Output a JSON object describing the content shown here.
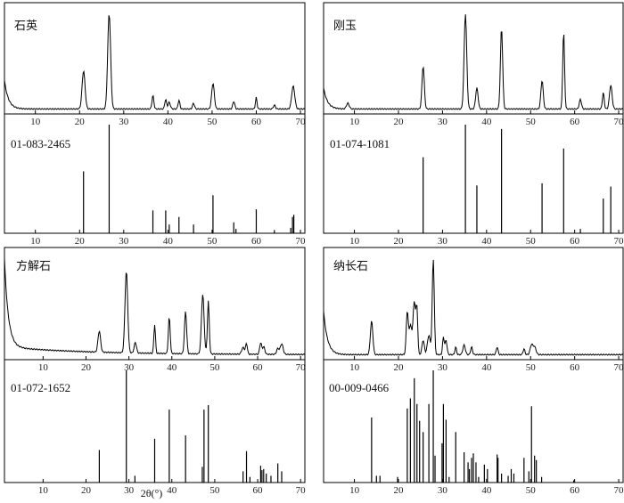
{
  "chart_data": [
    {
      "type": "line",
      "title": "石英",
      "xlim": [
        3,
        71
      ],
      "xticks": [
        10,
        20,
        30,
        40,
        50,
        60,
        70
      ],
      "peaks": [
        [
          20.9,
          0.4
        ],
        [
          26.7,
          1.0
        ],
        [
          36.6,
          0.14
        ],
        [
          39.5,
          0.1
        ],
        [
          40.3,
          0.07
        ],
        [
          42.5,
          0.09
        ],
        [
          45.8,
          0.06
        ],
        [
          50.2,
          0.27
        ],
        [
          54.9,
          0.08
        ],
        [
          60.0,
          0.12
        ],
        [
          64.1,
          0.04
        ],
        [
          68.2,
          0.13
        ],
        [
          68.5,
          0.14
        ]
      ],
      "baseline_start": 0.3
    },
    {
      "type": "bar",
      "title": "01-083-2465",
      "xlim": [
        3,
        71
      ],
      "xticks": [
        10,
        20,
        30,
        40,
        50,
        60,
        70
      ],
      "x": [
        20.9,
        26.7,
        36.6,
        39.5,
        40.3,
        42.5,
        45.8,
        50.2,
        54.9,
        55.4,
        60.0,
        64.1,
        67.8,
        68.2,
        68.5
      ],
      "y": [
        0.57,
        1.0,
        0.21,
        0.21,
        0.08,
        0.15,
        0.08,
        0.35,
        0.1,
        0.04,
        0.22,
        0.03,
        0.05,
        0.15,
        0.17
      ]
    },
    {
      "type": "line",
      "title": "刚玉",
      "xlim": [
        3,
        71
      ],
      "xticks": [
        10,
        20,
        30,
        40,
        50,
        60,
        70
      ],
      "peaks": [
        [
          8.5,
          0.06
        ],
        [
          25.6,
          0.45
        ],
        [
          35.2,
          1.0
        ],
        [
          37.8,
          0.22
        ],
        [
          43.4,
          0.85
        ],
        [
          52.6,
          0.3
        ],
        [
          57.5,
          0.81
        ],
        [
          61.3,
          0.1
        ],
        [
          66.5,
          0.17
        ],
        [
          68.2,
          0.25
        ]
      ],
      "baseline_start": 0.22
    },
    {
      "type": "bar",
      "title": "01-074-1081",
      "xlim": [
        3,
        71
      ],
      "xticks": [
        10,
        20,
        30,
        40,
        50,
        60,
        70
      ],
      "x": [
        25.6,
        35.2,
        37.8,
        43.4,
        52.6,
        57.5,
        61.3,
        66.5,
        68.2
      ],
      "y": [
        0.7,
        1.0,
        0.44,
        0.96,
        0.46,
        0.78,
        0.04,
        0.32,
        0.43
      ]
    },
    {
      "type": "line",
      "title": "方解石",
      "xlim": [
        1,
        71
      ],
      "xticks": [
        10,
        20,
        30,
        40,
        50,
        60,
        70
      ],
      "peaks": [
        [
          23.1,
          0.22
        ],
        [
          29.4,
          0.85
        ],
        [
          31.5,
          0.11
        ],
        [
          36.0,
          0.3
        ],
        [
          39.4,
          0.38
        ],
        [
          43.2,
          0.44
        ],
        [
          47.2,
          0.62
        ],
        [
          48.5,
          0.55
        ],
        [
          56.6,
          0.07
        ],
        [
          57.4,
          0.11
        ],
        [
          60.7,
          0.12
        ],
        [
          61.4,
          0.08
        ],
        [
          64.7,
          0.06
        ],
        [
          65.6,
          0.11
        ]
      ],
      "baseline_start": 0.92
    },
    {
      "type": "bar",
      "title": "01-072-1652",
      "xlim": [
        1,
        71
      ],
      "xticks": [
        10,
        20,
        30,
        40,
        50,
        60,
        70
      ],
      "x": [
        23.1,
        29.4,
        31.4,
        36.0,
        39.4,
        43.2,
        47.1,
        47.5,
        48.5,
        56.6,
        57.4,
        58.2,
        60.7,
        61.0,
        61.4,
        62.0,
        63.1,
        64.7,
        65.6
      ],
      "y": [
        0.29,
        1.0,
        0.06,
        0.39,
        0.65,
        0.42,
        0.14,
        0.65,
        0.69,
        0.1,
        0.28,
        0.05,
        0.15,
        0.11,
        0.12,
        0.08,
        0.06,
        0.17,
        0.1
      ]
    },
    {
      "type": "line",
      "title": "纳长石",
      "xlim": [
        3,
        71
      ],
      "xticks": [
        10,
        20,
        30,
        40,
        50,
        60,
        70
      ],
      "peaks": [
        [
          13.9,
          0.35
        ],
        [
          22.0,
          0.45
        ],
        [
          22.7,
          0.3
        ],
        [
          23.6,
          0.55
        ],
        [
          24.2,
          0.42
        ],
        [
          25.6,
          0.15
        ],
        [
          26.9,
          0.2
        ],
        [
          27.9,
          1.0
        ],
        [
          30.2,
          0.18
        ],
        [
          30.8,
          0.15
        ],
        [
          33.0,
          0.08
        ],
        [
          34.9,
          0.1
        ],
        [
          36.6,
          0.08
        ],
        [
          42.4,
          0.08
        ],
        [
          48.5,
          0.06
        ],
        [
          50.2,
          0.1
        ],
        [
          50.9,
          0.08
        ]
      ],
      "baseline_start": 0.45
    },
    {
      "type": "bar",
      "title": "00-009-0466",
      "xlim": [
        3,
        71
      ],
      "xticks": [
        10,
        20,
        30,
        40,
        50,
        60,
        70
      ],
      "x": [
        13.9,
        15.0,
        15.8,
        19.8,
        22.0,
        22.7,
        23.6,
        24.2,
        24.8,
        25.6,
        26.9,
        27.9,
        28.3,
        29.9,
        30.2,
        30.8,
        31.5,
        33.0,
        34.9,
        35.8,
        36.1,
        36.6,
        37.0,
        37.6,
        38.2,
        39.5,
        40.2,
        42.4,
        42.6,
        43.4,
        44.9,
        45.6,
        46.2,
        48.5,
        49.6,
        50.2,
        50.9,
        51.3,
        52.5,
        59.8
      ],
      "y": [
        0.58,
        0.06,
        0.06,
        0.05,
        0.66,
        0.75,
        0.93,
        0.7,
        0.55,
        0.45,
        0.7,
        1.0,
        0.24,
        0.35,
        0.7,
        0.56,
        0.05,
        0.45,
        0.27,
        0.18,
        0.12,
        0.22,
        0.26,
        0.18,
        0.05,
        0.16,
        0.12,
        0.25,
        0.22,
        0.08,
        0.06,
        0.12,
        0.08,
        0.22,
        0.1,
        0.68,
        0.24,
        0.2,
        0.05,
        0.02
      ]
    }
  ],
  "axis_common_xlabel": "2θ(°)"
}
